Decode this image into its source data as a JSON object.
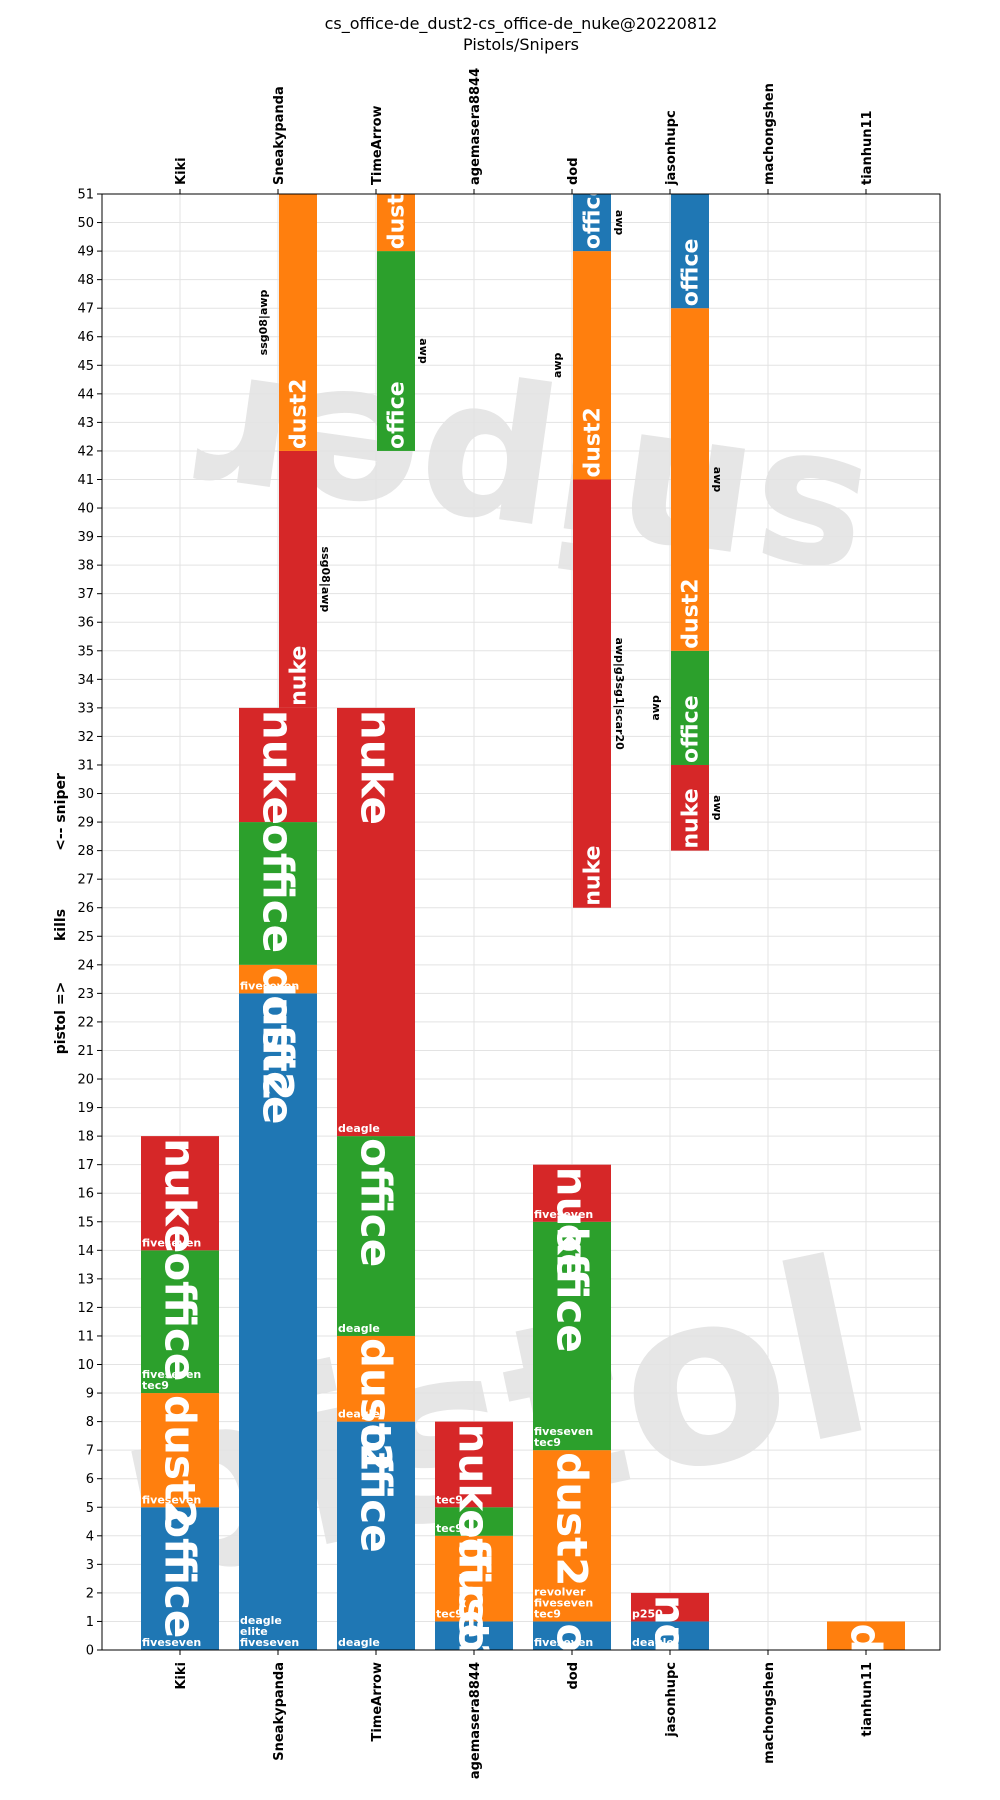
{
  "chart_data": {
    "type": "bar",
    "title": "cs_office-de_dust2-cs_office-de_nuke@20220812",
    "subtitle": "Pistols/Snipers",
    "ylabel_top": "<-- sniper",
    "ylabel_mid": "kills",
    "ylabel_bottom": "pistol =>",
    "ylim": [
      0,
      51
    ],
    "yticks": [
      0,
      1,
      2,
      3,
      4,
      5,
      6,
      7,
      8,
      9,
      10,
      11,
      12,
      13,
      14,
      15,
      16,
      17,
      18,
      19,
      20,
      21,
      22,
      23,
      24,
      25,
      26,
      27,
      28,
      29,
      30,
      31,
      32,
      33,
      34,
      35,
      36,
      37,
      38,
      39,
      40,
      41,
      42,
      43,
      44,
      45,
      46,
      47,
      48,
      49,
      50,
      51
    ],
    "grid": true,
    "watermark_top": "sniper",
    "watermark_bottom": "pistol",
    "players": [
      "Kiki",
      "Sneakypanda",
      "TimeArrow",
      "agemasera8844",
      "dod",
      "jasonhupc",
      "machongshen",
      "tianhun11"
    ],
    "map_colors": {
      "office": "#1f77b4",
      "dust2": "#ff7f0e",
      "office2": "#2ca02c",
      "nuke": "#d62728"
    },
    "pistol": [
      {
        "player": "Kiki",
        "segments": [
          {
            "map": "office",
            "color_key": "office",
            "value": 5,
            "weapons": [
              "fiveseven"
            ]
          },
          {
            "map": "dust2",
            "color_key": "dust2",
            "value": 4,
            "weapons": [
              "fiveseven"
            ]
          },
          {
            "map": "office",
            "color_key": "office2",
            "value": 5,
            "weapons": [
              "fiveseven",
              "tec9"
            ]
          },
          {
            "map": "nuke",
            "color_key": "nuke",
            "value": 4,
            "weapons": [
              "fiveseven"
            ]
          }
        ]
      },
      {
        "player": "Sneakypanda",
        "segments": [
          {
            "map": "office",
            "color_key": "office",
            "value": 23,
            "weapons": [
              "deagle",
              "elite",
              "fiveseven"
            ]
          },
          {
            "map": "dust2",
            "color_key": "dust2",
            "value": 1,
            "weapons": [
              "fiveseven"
            ]
          },
          {
            "map": "office",
            "color_key": "office2",
            "value": 5,
            "weapons": []
          },
          {
            "map": "nuke",
            "color_key": "nuke",
            "value": 4,
            "weapons": []
          }
        ]
      },
      {
        "player": "TimeArrow",
        "segments": [
          {
            "map": "office",
            "color_key": "office",
            "value": 8,
            "weapons": [
              "deagle"
            ]
          },
          {
            "map": "dust2",
            "color_key": "dust2",
            "value": 3,
            "weapons": [
              "deagle"
            ]
          },
          {
            "map": "office",
            "color_key": "office2",
            "value": 7,
            "weapons": [
              "deagle"
            ]
          },
          {
            "map": "nuke",
            "color_key": "nuke",
            "value": 15,
            "weapons": [
              "deagle"
            ]
          }
        ]
      },
      {
        "player": "agemasera8844",
        "segments": [
          {
            "map": "office",
            "color_key": "office",
            "value": 1,
            "weapons": []
          },
          {
            "map": "dust2",
            "color_key": "dust2",
            "value": 3,
            "weapons": [
              "tec9"
            ]
          },
          {
            "map": "office",
            "color_key": "office2",
            "value": 1,
            "weapons": [
              "tec9"
            ]
          },
          {
            "map": "nuke",
            "color_key": "nuke",
            "value": 3,
            "weapons": [
              "tec9"
            ]
          }
        ]
      },
      {
        "player": "dod",
        "segments": [
          {
            "map": "office",
            "color_key": "office",
            "value": 1,
            "weapons": [
              "fiveseven"
            ]
          },
          {
            "map": "dust2",
            "color_key": "dust2",
            "value": 6,
            "weapons": [
              "revolver",
              "fiveseven",
              "tec9"
            ]
          },
          {
            "map": "office",
            "color_key": "office2",
            "value": 8,
            "weapons": [
              "fiveseven",
              "tec9"
            ]
          },
          {
            "map": "nuke",
            "color_key": "nuke",
            "value": 2,
            "weapons": [
              "fiveseven"
            ]
          }
        ]
      },
      {
        "player": "jasonhupc",
        "segments": [
          {
            "map": "office",
            "color_key": "office",
            "value": 1,
            "weapons": [
              "deagle"
            ]
          },
          {
            "map": "nuke",
            "color_key": "nuke",
            "value": 1,
            "weapons": [
              "p250"
            ]
          }
        ]
      },
      {
        "player": "machongshen",
        "segments": []
      },
      {
        "player": "tianhun11",
        "segments": [
          {
            "map": "dust2",
            "color_key": "dust2",
            "value": 1,
            "weapons": []
          }
        ]
      }
    ],
    "sniper": [
      {
        "player": "Sneakypanda",
        "base": 33,
        "segments": [
          {
            "map": "nuke",
            "color_key": "nuke",
            "value": 9,
            "weapons": "ssg08|awp"
          },
          {
            "map": "dust2",
            "color_key": "dust2",
            "value": 9,
            "weapons": "ssg08|awp"
          }
        ]
      },
      {
        "player": "TimeArrow",
        "base": 42,
        "segments": [
          {
            "map": "office",
            "color_key": "office2",
            "value": 7,
            "weapons": "awp"
          },
          {
            "map": "dust2",
            "color_key": "dust2",
            "value": 2,
            "weapons": ""
          }
        ]
      },
      {
        "player": "dod",
        "base": 26,
        "segments": [
          {
            "map": "nuke",
            "color_key": "nuke",
            "value": 15,
            "weapons": "awp|g3sg1|scar20"
          },
          {
            "map": "dust2",
            "color_key": "dust2",
            "value": 8,
            "weapons": "awp"
          },
          {
            "map": "office",
            "color_key": "office",
            "value": 2,
            "weapons": "awp"
          }
        ]
      },
      {
        "player": "jasonhupc",
        "base": 28,
        "segments": [
          {
            "map": "nuke",
            "color_key": "nuke",
            "value": 3,
            "weapons": "awp"
          },
          {
            "map": "office",
            "color_key": "office2",
            "value": 4,
            "weapons": "awp"
          },
          {
            "map": "dust2",
            "color_key": "dust2",
            "value": 12,
            "weapons": "awp"
          },
          {
            "map": "office",
            "color_key": "office",
            "value": 4,
            "weapons": ""
          }
        ]
      }
    ]
  }
}
